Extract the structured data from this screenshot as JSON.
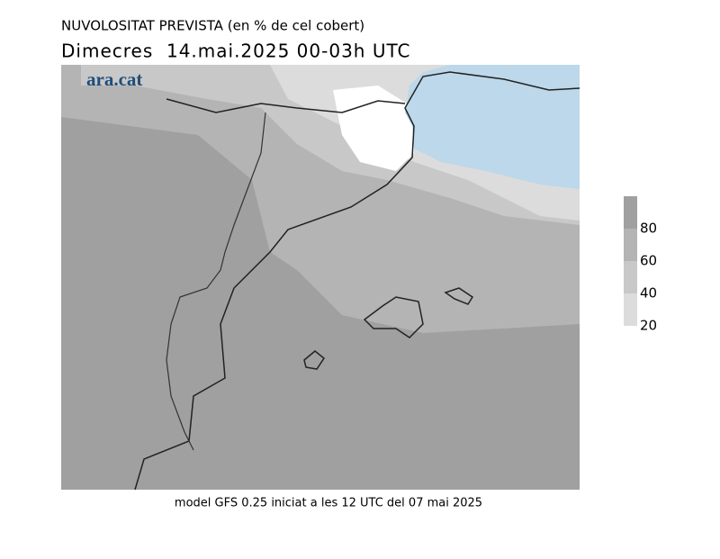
{
  "header": {
    "title": "NUVOLOSITAT PREVISTA (en % de cel cobert)",
    "subtitle": "Dimecres  14.mai.2025 00-03h UTC"
  },
  "map": {
    "brand": "ara.cat"
  },
  "legend": {
    "range": [
      20,
      100
    ],
    "ticks": [
      20,
      40,
      60,
      80
    ],
    "colors": [
      "#dcdcdc",
      "#c8c8c8",
      "#b4b4b4",
      "#a0a0a0"
    ]
  },
  "footer": "model GFS 0.25 iniciat a les 12 UTC del 07 mai 2025"
}
